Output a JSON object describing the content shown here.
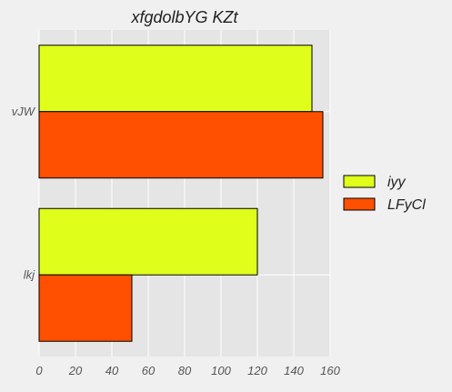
{
  "chart_data": {
    "type": "bar",
    "orientation": "horizontal",
    "title": "xfgdolbYG KZt",
    "xlabel": "",
    "ylabel": "",
    "categories": [
      "vJW",
      "lkj"
    ],
    "series": [
      {
        "name": "iyy",
        "values": [
          150,
          120
        ],
        "color": "#dfff1a"
      },
      {
        "name": "LFyCl",
        "values": [
          156,
          51
        ],
        "color": "#ff4f00"
      }
    ],
    "xlim": [
      0,
      160
    ],
    "xticks": [
      0,
      20,
      40,
      60,
      80,
      100,
      120,
      140,
      160
    ],
    "grid": true,
    "legend": "right",
    "plot_background": "#e5e5e5",
    "bar_edge_color": "#000000",
    "gridline_color": "#ffffff"
  }
}
